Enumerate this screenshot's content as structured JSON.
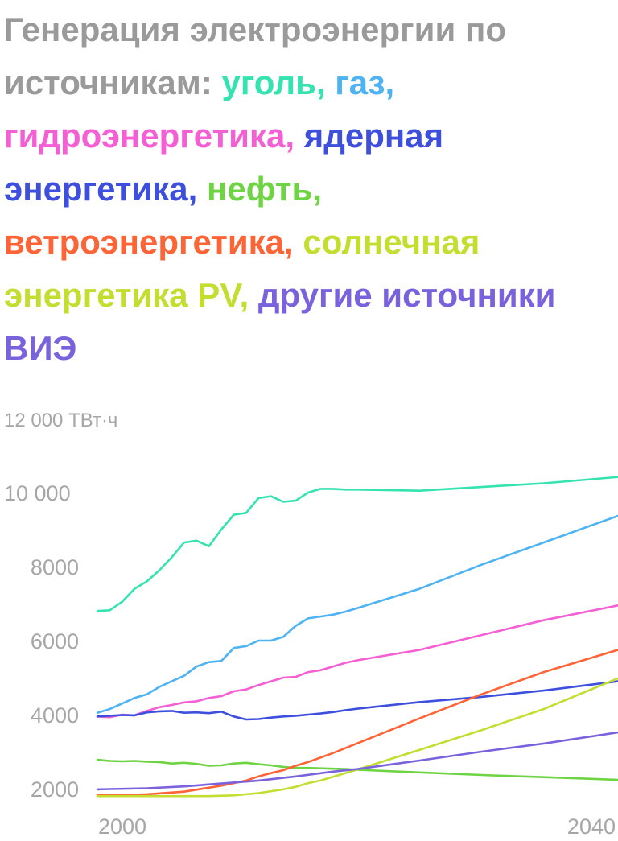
{
  "title": {
    "prefix": "Генерация электроэнергии по источникам: ",
    "parts": [
      {
        "text": "уголь",
        "color": "#35e3b1"
      },
      {
        "text": "газ",
        "color": "#4fb3f2"
      },
      {
        "text": "гидроэнергетика",
        "color": "#f45fd4"
      },
      {
        "text": "ядерная энергетика",
        "color": "#3e4fdd"
      },
      {
        "text": "нефть",
        "color": "#6ed444"
      },
      {
        "text": "ветроэнергетика",
        "color": "#ff6437"
      },
      {
        "text": "солнечная энергетика PV",
        "color": "#c4dd31"
      },
      {
        "text": "другие источники ВИЭ",
        "color": "#7b62dd"
      }
    ],
    "separator": ", "
  },
  "chart_data": {
    "type": "line",
    "title": "Генерация электроэнергии по источникам: уголь, газ, гидроэнергетика, ядерная энергетика, нефть, ветроэнергетика, солнечная энергетика PV, другие источники ВИЭ",
    "y_unit_label": "12 000 ТВт·ч",
    "x_tick_labels": [
      "2000",
      "2040"
    ],
    "y_tick_labels": [
      "10 000",
      "8000",
      "6000",
      "4000",
      "2000"
    ],
    "xlim": [
      1999,
      2041
    ],
    "ylim": [
      1800,
      12000
    ],
    "grid": false,
    "legend": "title",
    "series": [
      {
        "name": "уголь",
        "color": "#35e3b1",
        "x": [
          1999,
          2000,
          2001,
          2002,
          2003,
          2004,
          2005,
          2006,
          2007,
          2008,
          2009,
          2010,
          2011,
          2012,
          2013,
          2014,
          2015,
          2016,
          2017,
          2018,
          2019,
          2020,
          2025,
          2030,
          2035,
          2041
        ],
        "y": [
          6800,
          6820,
          7050,
          7400,
          7600,
          7900,
          8250,
          8650,
          8700,
          8550,
          9000,
          9400,
          9450,
          9850,
          9900,
          9750,
          9780,
          10000,
          10100,
          10100,
          10080,
          10080,
          10050,
          10150,
          10250,
          10420
        ]
      },
      {
        "name": "газ",
        "color": "#4fb3f2",
        "x": [
          1999,
          2000,
          2001,
          2002,
          2003,
          2004,
          2005,
          2006,
          2007,
          2008,
          2009,
          2010,
          2011,
          2012,
          2013,
          2014,
          2015,
          2016,
          2017,
          2018,
          2019,
          2020,
          2025,
          2030,
          2035,
          2041
        ],
        "y": [
          4050,
          4150,
          4300,
          4450,
          4550,
          4750,
          4900,
          5050,
          5300,
          5420,
          5450,
          5800,
          5850,
          6000,
          6000,
          6100,
          6400,
          6600,
          6650,
          6700,
          6780,
          6880,
          7400,
          8050,
          8650,
          9370
        ]
      },
      {
        "name": "гидроэнергетика",
        "color": "#f45fd4",
        "x": [
          1999,
          2000,
          2001,
          2002,
          2003,
          2004,
          2005,
          2006,
          2007,
          2008,
          2009,
          2010,
          2011,
          2012,
          2013,
          2014,
          2015,
          2016,
          2017,
          2018,
          2019,
          2020,
          2025,
          2030,
          2035,
          2041
        ],
        "y": [
          3950,
          3930,
          4000,
          3980,
          4100,
          4200,
          4260,
          4330,
          4360,
          4450,
          4500,
          4630,
          4680,
          4800,
          4900,
          5000,
          5020,
          5150,
          5200,
          5300,
          5400,
          5470,
          5750,
          6150,
          6550,
          6950
        ]
      },
      {
        "name": "ядерная энергетика",
        "color": "#3e4fdd",
        "x": [
          1999,
          2000,
          2001,
          2002,
          2003,
          2004,
          2005,
          2006,
          2007,
          2008,
          2009,
          2010,
          2011,
          2012,
          2013,
          2014,
          2015,
          2016,
          2017,
          2018,
          2019,
          2020,
          2025,
          2030,
          2035,
          2041
        ],
        "y": [
          3950,
          3970,
          3990,
          3980,
          4060,
          4090,
          4100,
          4050,
          4060,
          4040,
          4080,
          3950,
          3870,
          3880,
          3920,
          3950,
          3970,
          4000,
          4030,
          4070,
          4120,
          4160,
          4340,
          4480,
          4650,
          4900
        ]
      },
      {
        "name": "нефть",
        "color": "#6ed444",
        "x": [
          1999,
          2000,
          2001,
          2002,
          2003,
          2004,
          2005,
          2006,
          2007,
          2008,
          2009,
          2010,
          2011,
          2012,
          2013,
          2014,
          2015,
          2016,
          2017,
          2018,
          2019,
          2020,
          2025,
          2030,
          2035,
          2041
        ],
        "y": [
          2780,
          2750,
          2740,
          2750,
          2730,
          2720,
          2680,
          2700,
          2670,
          2620,
          2630,
          2680,
          2700,
          2660,
          2630,
          2590,
          2560,
          2560,
          2550,
          2540,
          2530,
          2510,
          2440,
          2370,
          2310,
          2240
        ]
      },
      {
        "name": "ветроэнергетика",
        "color": "#ff6437",
        "x": [
          1999,
          2000,
          2003,
          2006,
          2009,
          2010,
          2011,
          2012,
          2013,
          2014,
          2015,
          2016,
          2018,
          2020,
          2025,
          2030,
          2035,
          2041
        ],
        "y": [
          1820,
          1820,
          1850,
          1920,
          2080,
          2150,
          2220,
          2330,
          2420,
          2500,
          2620,
          2720,
          2960,
          3230,
          3900,
          4550,
          5150,
          5750
        ]
      },
      {
        "name": "солнечная энергетика PV",
        "color": "#c4dd31",
        "x": [
          1999,
          2000,
          2004,
          2008,
          2010,
          2012,
          2014,
          2015,
          2016,
          2017,
          2018,
          2019,
          2020,
          2025,
          2030,
          2035,
          2041
        ],
        "y": [
          1800,
          1800,
          1800,
          1800,
          1820,
          1880,
          1980,
          2050,
          2150,
          2220,
          2320,
          2420,
          2520,
          3050,
          3580,
          4150,
          4980
        ]
      },
      {
        "name": "другие источники ВИЭ",
        "color": "#7b62dd",
        "x": [
          1999,
          2000,
          2003,
          2006,
          2009,
          2012,
          2015,
          2018,
          2020,
          2025,
          2030,
          2035,
          2041
        ],
        "y": [
          1980,
          1990,
          2010,
          2060,
          2140,
          2220,
          2330,
          2460,
          2530,
          2760,
          3000,
          3220,
          3520
        ]
      }
    ]
  }
}
